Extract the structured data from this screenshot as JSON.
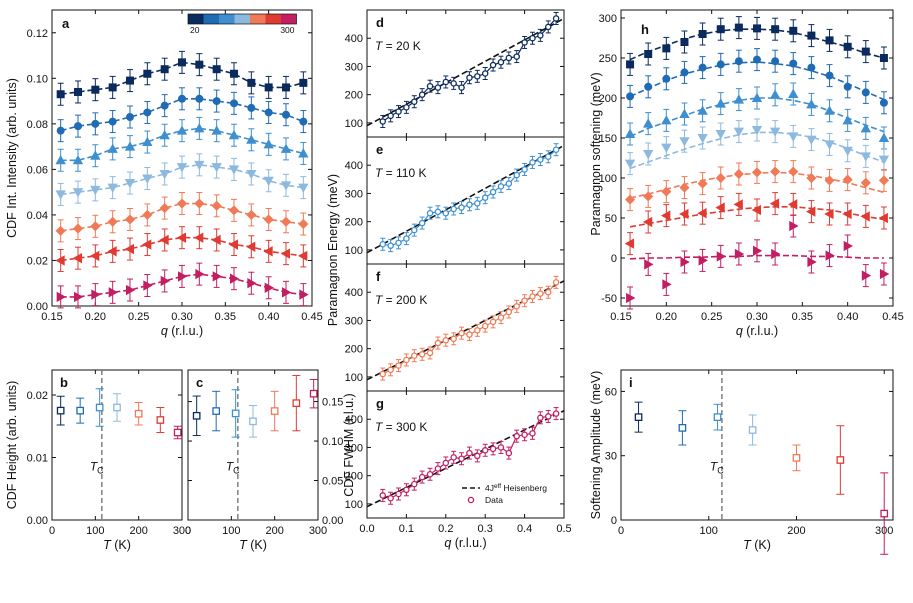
{
  "palette": {
    "20": "#0b2a5e",
    "60": "#1f6cb4",
    "110": "#3e8fcf",
    "150": "#8eb9df",
    "200": "#f07a57",
    "250": "#df3b33",
    "300": "#c21e63"
  },
  "colorbar": {
    "min_label": "20",
    "max_label": "300"
  },
  "chart_data": [
    {
      "id": "a",
      "panel_letter": "a",
      "type": "scatter",
      "xlabel_var": "q",
      "xlabel_unit": " (r.l.u.)",
      "ylabel": "CDF Int. Intensity (arb. units)",
      "xlim": [
        0.15,
        0.45
      ],
      "ylim": [
        0,
        0.13
      ],
      "xticks": [
        "0.15",
        "0.20",
        "0.25",
        "0.30",
        "0.35",
        "0.40",
        "0.45"
      ],
      "yticks": [
        "0.00",
        "0.02",
        "0.04",
        "0.06",
        "0.08",
        "0.10",
        "0.12"
      ],
      "grid": false,
      "x": [
        0.16,
        0.18,
        0.2,
        0.22,
        0.24,
        0.26,
        0.28,
        0.3,
        0.32,
        0.34,
        0.36,
        0.38,
        0.4,
        0.42,
        0.44
      ],
      "series": [
        {
          "temperature": "20",
          "marker": "square",
          "values": [
            0.093,
            0.094,
            0.095,
            0.096,
            0.099,
            0.102,
            0.104,
            0.107,
            0.106,
            0.104,
            0.102,
            0.098,
            0.096,
            0.096,
            0.098
          ]
        },
        {
          "temperature": "60",
          "marker": "circle",
          "values": [
            0.077,
            0.079,
            0.08,
            0.081,
            0.083,
            0.085,
            0.088,
            0.091,
            0.091,
            0.09,
            0.089,
            0.087,
            0.085,
            0.084,
            0.081
          ]
        },
        {
          "temperature": "110",
          "marker": "triangle-up",
          "values": [
            0.064,
            0.064,
            0.066,
            0.069,
            0.07,
            0.072,
            0.075,
            0.077,
            0.078,
            0.077,
            0.075,
            0.073,
            0.071,
            0.069,
            0.067
          ]
        },
        {
          "temperature": "150",
          "marker": "triangle-down",
          "values": [
            0.049,
            0.05,
            0.051,
            0.052,
            0.054,
            0.056,
            0.058,
            0.061,
            0.062,
            0.061,
            0.06,
            0.058,
            0.055,
            0.053,
            0.052
          ]
        },
        {
          "temperature": "200",
          "marker": "diamond",
          "values": [
            0.033,
            0.034,
            0.035,
            0.037,
            0.038,
            0.04,
            0.043,
            0.045,
            0.045,
            0.044,
            0.042,
            0.04,
            0.038,
            0.037,
            0.036
          ]
        },
        {
          "temperature": "250",
          "marker": "triangle-left",
          "values": [
            0.02,
            0.021,
            0.022,
            0.024,
            0.025,
            0.027,
            0.029,
            0.03,
            0.03,
            0.029,
            0.027,
            0.026,
            0.024,
            0.023,
            0.022
          ]
        },
        {
          "temperature": "300",
          "marker": "triangle-right",
          "values": [
            0.004,
            0.004,
            0.005,
            0.006,
            0.007,
            0.009,
            0.011,
            0.013,
            0.014,
            0.013,
            0.012,
            0.01,
            0.008,
            0.006,
            0.005
          ]
        }
      ]
    },
    {
      "id": "b",
      "panel_letter": "b",
      "type": "scatter",
      "xlabel_var": "T",
      "xlabel_unit": " (K)",
      "ylabel": "CDF Height (arb. units)",
      "xlim": [
        0,
        300
      ],
      "ylim": [
        0,
        0.024
      ],
      "xticks": [
        "0",
        "100",
        "200",
        "300"
      ],
      "yticks": [
        "0.00",
        "0.01",
        "0.02"
      ],
      "annotation": "T",
      "annotation_sub": "C",
      "tc": 115,
      "points": [
        {
          "temperature": "20",
          "x": 20,
          "y": 0.0175,
          "err": 0.0023
        },
        {
          "temperature": "60",
          "x": 65,
          "y": 0.0175,
          "err": 0.002
        },
        {
          "temperature": "110",
          "x": 110,
          "y": 0.018,
          "err": 0.003
        },
        {
          "temperature": "150",
          "x": 150,
          "y": 0.018,
          "err": 0.0022
        },
        {
          "temperature": "200",
          "x": 200,
          "y": 0.017,
          "err": 0.0018
        },
        {
          "temperature": "250",
          "x": 250,
          "y": 0.016,
          "err": 0.002
        },
        {
          "temperature": "300",
          "x": 290,
          "y": 0.014,
          "err": 0.001
        }
      ]
    },
    {
      "id": "c",
      "panel_letter": "c",
      "type": "scatter",
      "xlabel_var": "T",
      "xlabel_unit": " (K)",
      "ylabel": "CDF FWHM (r.l.u.)",
      "xlim": [
        0,
        300
      ],
      "ylim": [
        0,
        0.19
      ],
      "xticks": [
        "0",
        "100",
        "200",
        "300"
      ],
      "yticks": [
        "0.00",
        "0.05",
        "0.10",
        "0.15"
      ],
      "annotation": "T",
      "annotation_sub": "C",
      "tc": 115,
      "points": [
        {
          "temperature": "20",
          "x": 20,
          "y": 0.132,
          "err": 0.025
        },
        {
          "temperature": "60",
          "x": 65,
          "y": 0.138,
          "err": 0.025
        },
        {
          "temperature": "110",
          "x": 110,
          "y": 0.135,
          "err": 0.03
        },
        {
          "temperature": "150",
          "x": 150,
          "y": 0.125,
          "err": 0.02
        },
        {
          "temperature": "200",
          "x": 200,
          "y": 0.138,
          "err": 0.025
        },
        {
          "temperature": "250",
          "x": 250,
          "y": 0.148,
          "err": 0.035
        },
        {
          "temperature": "300",
          "x": 290,
          "y": 0.16,
          "err": 0.018
        }
      ]
    },
    {
      "id": "d",
      "panel_letter": "d",
      "type": "scatter",
      "ylabel": "",
      "xlim": [
        0,
        0.5
      ],
      "ylim": [
        50,
        500
      ],
      "yticks": [
        "100",
        "200",
        "300",
        "400"
      ],
      "temperature_label": "T",
      "temperature_value": " = 20 K",
      "temperature": "20",
      "fit": [
        [
          0.0,
          90
        ],
        [
          0.5,
          470
        ]
      ],
      "x": [
        0.04,
        0.06,
        0.08,
        0.1,
        0.12,
        0.14,
        0.16,
        0.18,
        0.2,
        0.22,
        0.24,
        0.26,
        0.28,
        0.3,
        0.32,
        0.34,
        0.36,
        0.38,
        0.4,
        0.42,
        0.44,
        0.46,
        0.48
      ],
      "values": [
        105,
        125,
        140,
        155,
        175,
        200,
        230,
        225,
        245,
        240,
        225,
        260,
        265,
        275,
        305,
        315,
        330,
        335,
        385,
        400,
        410,
        440,
        470
      ]
    },
    {
      "id": "e",
      "panel_letter": "e",
      "type": "scatter",
      "ylabel": "",
      "xlim": [
        0,
        0.5
      ],
      "ylim": [
        50,
        500
      ],
      "yticks": [
        "100",
        "200",
        "300",
        "400"
      ],
      "temperature_label": "T",
      "temperature_value": " = 110 K",
      "temperature": "110",
      "fit": [
        [
          0.0,
          90
        ],
        [
          0.5,
          470
        ]
      ],
      "x": [
        0.04,
        0.06,
        0.08,
        0.1,
        0.12,
        0.14,
        0.16,
        0.18,
        0.2,
        0.22,
        0.24,
        0.26,
        0.28,
        0.3,
        0.32,
        0.34,
        0.36,
        0.38,
        0.4,
        0.42,
        0.44,
        0.46,
        0.48
      ],
      "values": [
        120,
        115,
        125,
        140,
        170,
        195,
        230,
        235,
        230,
        245,
        250,
        260,
        265,
        285,
        305,
        325,
        335,
        365,
        385,
        410,
        420,
        430,
        455
      ]
    },
    {
      "id": "f",
      "panel_letter": "f",
      "type": "scatter",
      "ylabel": "",
      "xlim": [
        0,
        0.5
      ],
      "ylim": [
        50,
        500
      ],
      "yticks": [
        "100",
        "200",
        "300",
        "400"
      ],
      "temperature_label": "T",
      "temperature_value": " = 200 K",
      "temperature": "200",
      "fit": [
        [
          0.0,
          90
        ],
        [
          0.5,
          440
        ]
      ],
      "x": [
        0.04,
        0.06,
        0.08,
        0.1,
        0.12,
        0.14,
        0.16,
        0.18,
        0.2,
        0.22,
        0.24,
        0.26,
        0.28,
        0.3,
        0.32,
        0.34,
        0.36,
        0.38,
        0.4,
        0.42,
        0.44,
        0.46,
        0.48
      ],
      "values": [
        110,
        125,
        140,
        160,
        175,
        180,
        185,
        220,
        230,
        235,
        255,
        250,
        265,
        280,
        295,
        310,
        330,
        350,
        370,
        385,
        395,
        400,
        435
      ]
    },
    {
      "id": "g",
      "panel_letter": "g",
      "type": "scatter",
      "xlabel_var": "q",
      "xlabel_unit": " (r.l.u.)",
      "ylabel": "",
      "xlim": [
        0,
        0.5
      ],
      "ylim": [
        50,
        500
      ],
      "xticks": [
        "0.0",
        "0.1",
        "0.2",
        "0.3",
        "0.4",
        "0.5"
      ],
      "yticks": [
        "100",
        "200",
        "300",
        "400"
      ],
      "temperature_label": "T",
      "temperature_value": " = 300 K",
      "temperature": "300",
      "fit": [
        [
          0.0,
          90
        ],
        [
          0.5,
          430
        ]
      ],
      "x": [
        0.04,
        0.06,
        0.08,
        0.1,
        0.12,
        0.14,
        0.16,
        0.18,
        0.2,
        0.22,
        0.24,
        0.26,
        0.28,
        0.3,
        0.32,
        0.34,
        0.36,
        0.38,
        0.4,
        0.42,
        0.44,
        0.46,
        0.48
      ],
      "values": [
        130,
        120,
        135,
        150,
        170,
        195,
        205,
        225,
        245,
        265,
        260,
        280,
        270,
        290,
        295,
        300,
        280,
        340,
        345,
        350,
        405,
        410,
        420
      ],
      "legend": [
        {
          "kind": "line",
          "label": "4J",
          "label_sup": "eff",
          "label_tail": " Heisenberg"
        },
        {
          "kind": "marker",
          "label": "Data"
        }
      ]
    },
    {
      "id": "h",
      "panel_letter": "h",
      "type": "scatter",
      "xlabel_var": "q",
      "xlabel_unit": " (r.l.u.)",
      "ylabel": "Paramagnon softening (meV)",
      "xlim": [
        0.15,
        0.45
      ],
      "ylim": [
        -60,
        310
      ],
      "xticks": [
        "0.15",
        "0.20",
        "0.25",
        "0.30",
        "0.35",
        "0.40",
        "0.45"
      ],
      "yticks": [
        "-50",
        "0",
        "50",
        "100",
        "150",
        "200",
        "250",
        "300"
      ],
      "x": [
        0.16,
        0.18,
        0.2,
        0.22,
        0.24,
        0.26,
        0.28,
        0.3,
        0.32,
        0.34,
        0.36,
        0.38,
        0.4,
        0.42,
        0.44
      ],
      "series": [
        {
          "temperature": "20",
          "marker": "square",
          "values": [
            242,
            255,
            262,
            270,
            280,
            286,
            288,
            287,
            286,
            284,
            278,
            272,
            264,
            258,
            250
          ]
        },
        {
          "temperature": "60",
          "marker": "circle",
          "values": [
            202,
            214,
            224,
            232,
            238,
            242,
            246,
            248,
            246,
            243,
            238,
            228,
            214,
            207,
            194
          ]
        },
        {
          "temperature": "110",
          "marker": "triangle-up",
          "values": [
            155,
            168,
            172,
            180,
            184,
            193,
            198,
            200,
            204,
            205,
            192,
            184,
            172,
            162,
            150
          ]
        },
        {
          "temperature": "150",
          "marker": "triangle-down",
          "values": [
            118,
            130,
            138,
            146,
            150,
            155,
            158,
            160,
            158,
            152,
            148,
            142,
            134,
            127,
            123
          ]
        },
        {
          "temperature": "200",
          "marker": "diamond",
          "values": [
            73,
            77,
            83,
            88,
            93,
            100,
            105,
            107,
            108,
            108,
            100,
            97,
            98,
            94,
            97
          ]
        },
        {
          "temperature": "250",
          "marker": "triangle-left",
          "values": [
            18,
            45,
            53,
            55,
            56,
            63,
            67,
            60,
            68,
            67,
            58,
            55,
            55,
            52,
            50
          ]
        },
        {
          "temperature": "300",
          "marker": "triangle-right",
          "values": [
            -50,
            -8,
            -33,
            -5,
            -3,
            2,
            5,
            9,
            5,
            40,
            -5,
            3,
            15,
            -22,
            -20
          ]
        }
      ],
      "fits": [
        [
          248,
          258,
          266,
          274,
          280,
          284,
          286,
          286,
          285,
          282,
          276,
          270,
          264,
          256,
          250
        ],
        [
          202,
          212,
          222,
          230,
          236,
          241,
          244,
          245,
          243,
          240,
          234,
          227,
          218,
          208,
          198
        ],
        [
          152,
          162,
          170,
          178,
          186,
          192,
          197,
          200,
          200,
          197,
          192,
          184,
          175,
          166,
          158
        ],
        [
          112,
          120,
          128,
          136,
          143,
          149,
          154,
          157,
          157,
          155,
          151,
          145,
          137,
          128,
          120
        ],
        [
          75,
          80,
          86,
          92,
          97,
          101,
          104,
          106,
          107,
          106,
          103,
          99,
          94,
          88,
          82
        ],
        [
          39,
          43,
          47,
          51,
          55,
          58,
          61,
          63,
          64,
          64,
          62,
          60,
          56,
          52,
          48
        ],
        [
          -1,
          0,
          0,
          1,
          1,
          2,
          2,
          3,
          3,
          3,
          2,
          2,
          1,
          0,
          0
        ]
      ]
    },
    {
      "id": "i",
      "panel_letter": "i",
      "type": "scatter",
      "xlabel_var": "T",
      "xlabel_unit": " (K)",
      "ylabel": "Softening Amplitude (meV)",
      "xlim": [
        0,
        310
      ],
      "ylim": [
        0,
        70
      ],
      "xticks": [
        "0",
        "100",
        "200",
        "300"
      ],
      "yticks": [
        "0",
        "30",
        "60"
      ],
      "annotation": "T",
      "annotation_sub": "C",
      "tc": 115,
      "points": [
        {
          "temperature": "20",
          "x": 20,
          "y": 48,
          "err": 7
        },
        {
          "temperature": "60",
          "x": 70,
          "y": 43,
          "err": 8
        },
        {
          "temperature": "110",
          "x": 110,
          "y": 48,
          "err": 6
        },
        {
          "temperature": "150",
          "x": 150,
          "y": 42,
          "err": 7
        },
        {
          "temperature": "200",
          "x": 200,
          "y": 29,
          "err": 6
        },
        {
          "temperature": "250",
          "x": 250,
          "y": 28,
          "err": 16
        },
        {
          "temperature": "300",
          "x": 300,
          "y": 3,
          "err": 19
        }
      ]
    }
  ],
  "shared_labels": {
    "energy_ylabel": "Paramagnon Energy (meV)"
  }
}
